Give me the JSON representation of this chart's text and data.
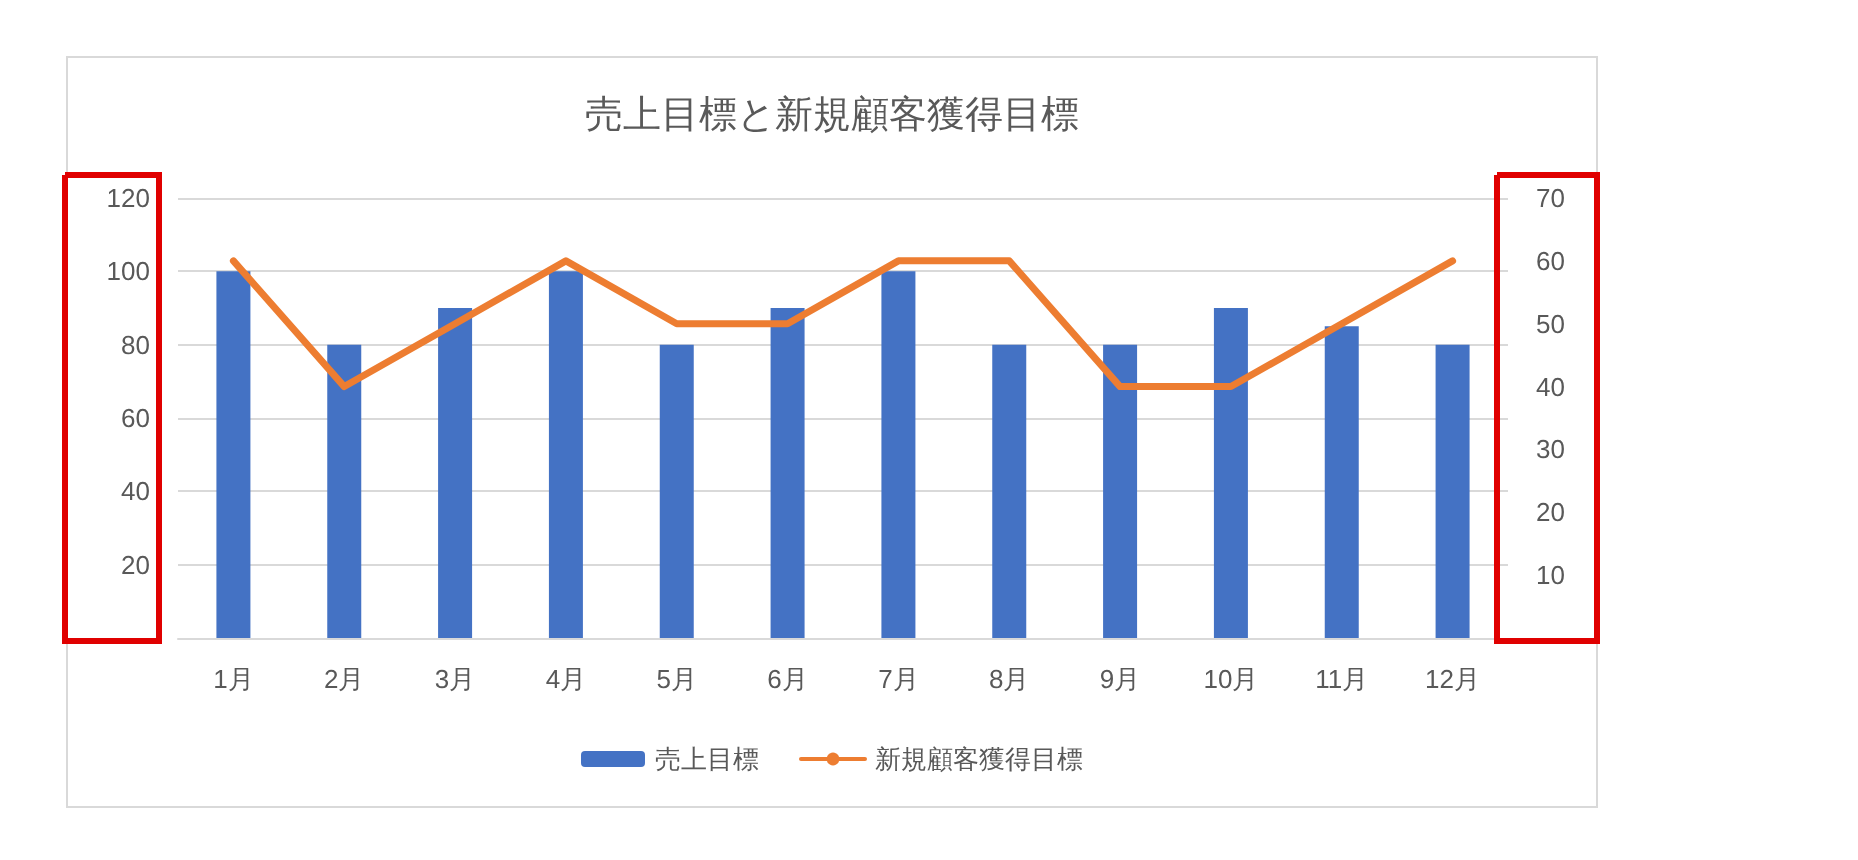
{
  "chart_data": {
    "type": "bar",
    "title": "売上目標と新規顧客獲得目標",
    "categories": [
      "1月",
      "2月",
      "3月",
      "4月",
      "5月",
      "6月",
      "7月",
      "8月",
      "9月",
      "10月",
      "11月",
      "12月"
    ],
    "series": [
      {
        "name": "売上目標",
        "color": "#4472c4",
        "values": [
          100,
          80,
          90,
          100,
          80,
          90,
          100,
          80,
          80,
          90,
          85,
          80
        ]
      },
      {
        "name": "新規顧客獲得目標",
        "type": "line",
        "axis": "y2",
        "color": "#ed7d31",
        "values": [
          60,
          40,
          50,
          60,
          50,
          50,
          60,
          60,
          40,
          40,
          50,
          60
        ]
      }
    ],
    "ylim": [
      0,
      120
    ],
    "yticks": [
      20,
      40,
      60,
      80,
      100,
      120
    ],
    "y2lim": [
      0,
      70
    ],
    "y2ticks": [
      10,
      20,
      30,
      40,
      50,
      60,
      70
    ],
    "grid": "y",
    "legend": "bottom",
    "marker": "none",
    "line_style": "solid"
  }
}
